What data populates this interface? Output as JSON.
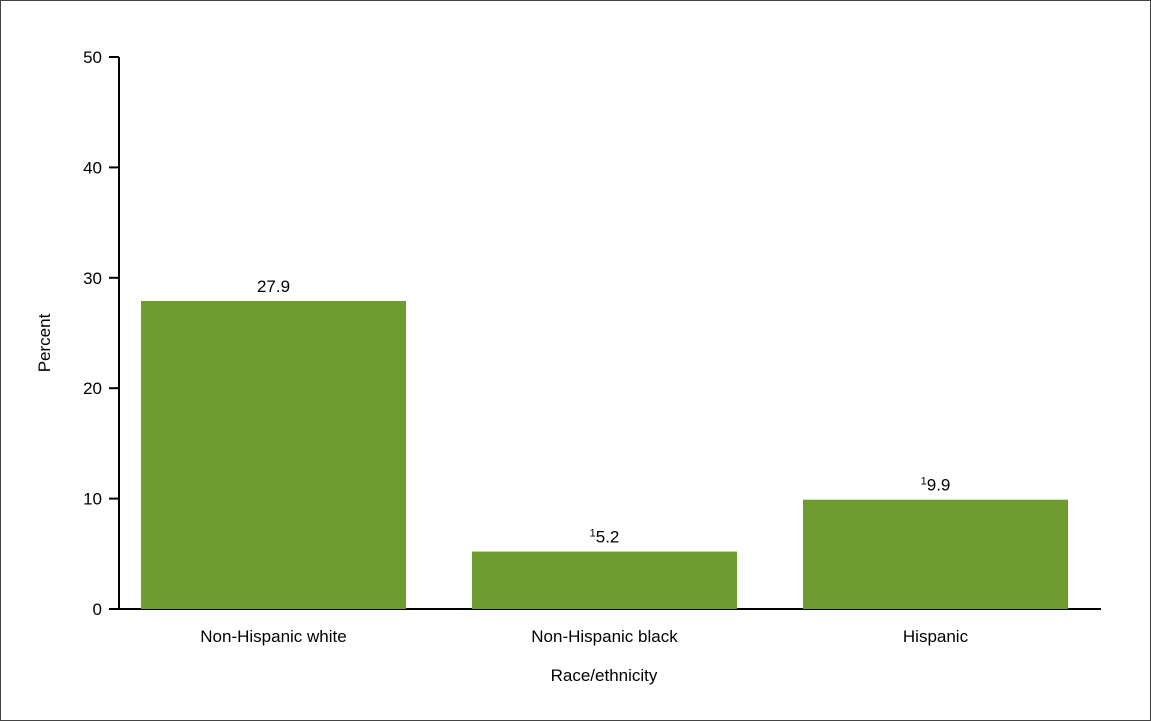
{
  "chart_data": {
    "type": "bar",
    "categories": [
      "Non-Hispanic white",
      "Non-Hispanic black",
      "Hispanic"
    ],
    "values": [
      27.9,
      5.2,
      9.9
    ],
    "data_labels": [
      {
        "footnote": "",
        "value": "27.9"
      },
      {
        "footnote": "1",
        "value": "5.2"
      },
      {
        "footnote": "1",
        "value": "9.9"
      }
    ],
    "xlabel": "Race/ethnicity",
    "ylabel": "Percent",
    "ylim": [
      0,
      50
    ],
    "yticks": [
      0,
      10,
      20,
      30,
      40,
      50
    ],
    "bar_color": "#6e9b30",
    "grid": false
  }
}
